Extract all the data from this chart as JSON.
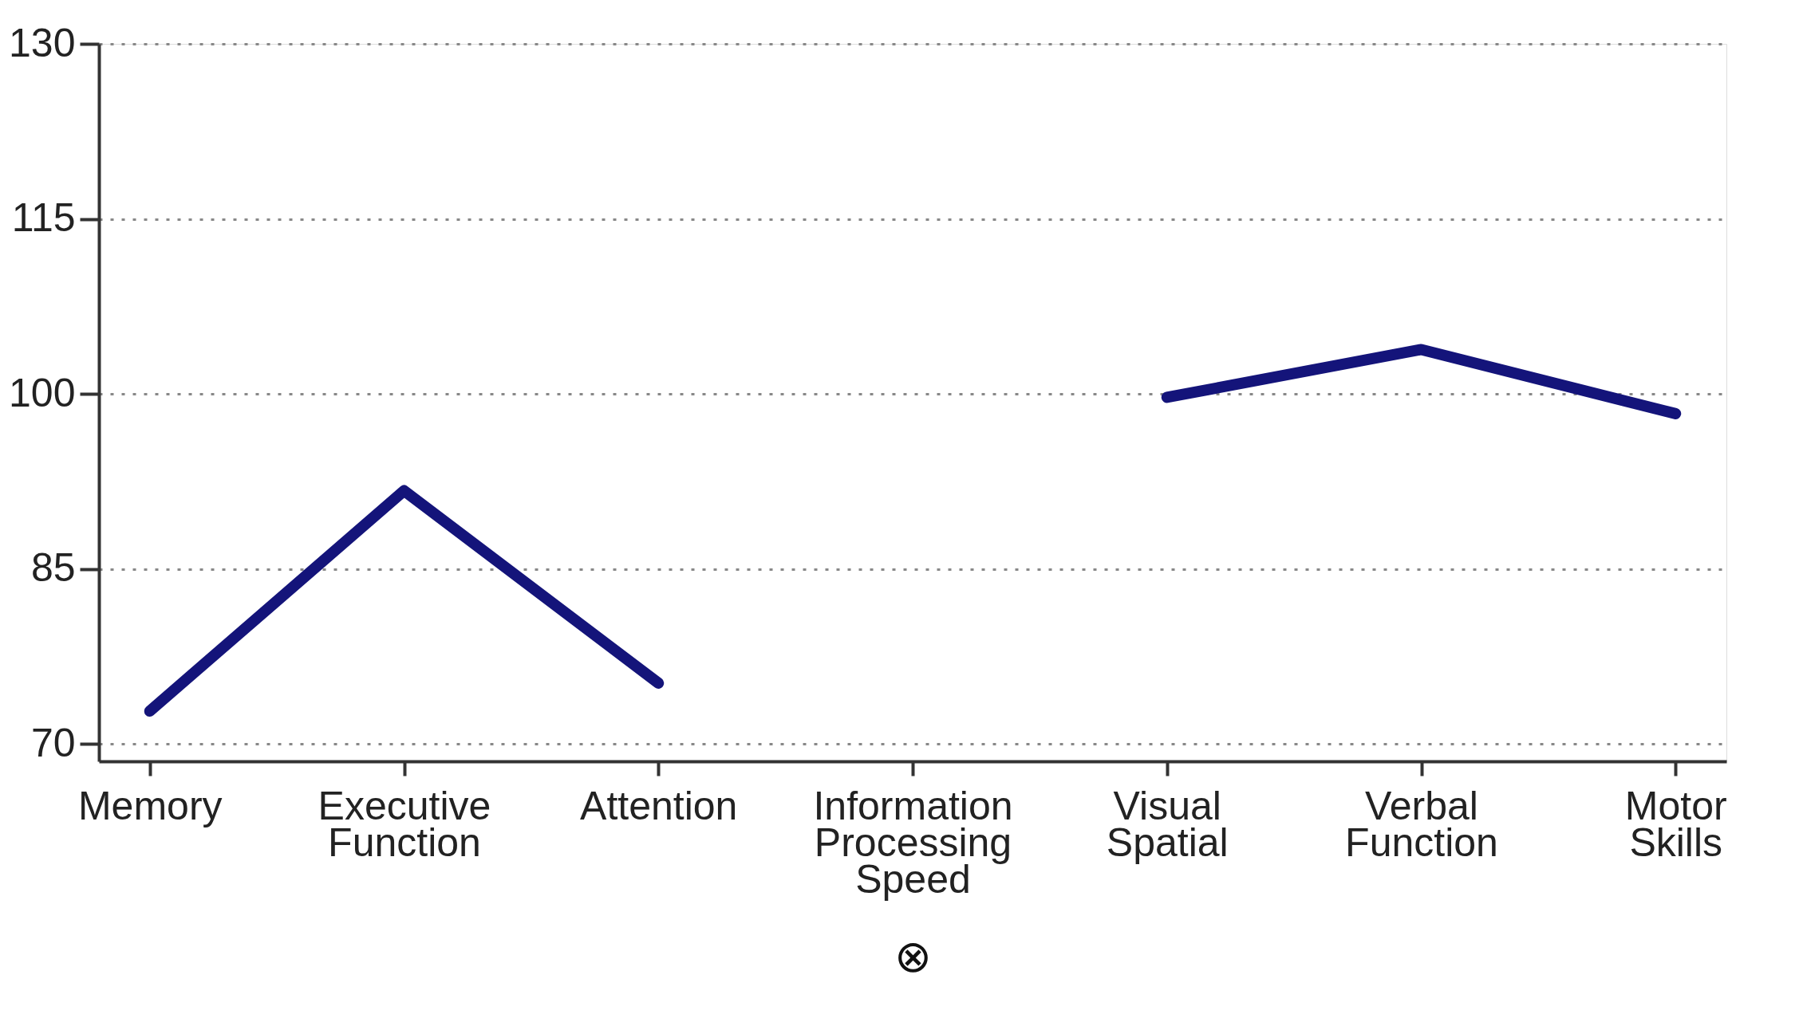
{
  "chart_data": {
    "type": "line",
    "categories": [
      "Memory",
      "Executive\nFunction",
      "Attention",
      "Information\nProcessing\nSpeed",
      "Visual\nSpatial",
      "Verbal\nFunction",
      "Motor\nSkills"
    ],
    "series": [
      {
        "color": "#14147a",
        "values": [
          72.8,
          91.7,
          75.2,
          null,
          99.7,
          103.8,
          98.3
        ]
      }
    ],
    "ylim": [
      68.5,
      130
    ],
    "yticks": [
      70,
      85,
      100,
      115,
      130
    ],
    "grid": "y",
    "marker": "none",
    "line_style": "solid",
    "annotations": [
      "⊗"
    ]
  }
}
